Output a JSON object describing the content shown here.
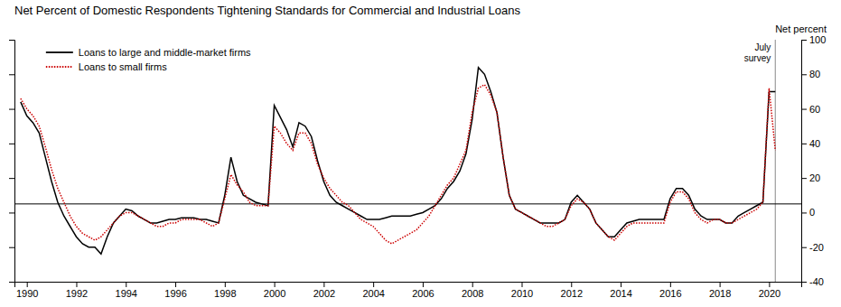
{
  "chart_data": {
    "type": "line",
    "title": "Net Percent of Domestic Respondents Tightening Standards for Commercial and Industrial Loans",
    "ylabel": "Net percent",
    "x": [
      1989.75,
      1990.0,
      1990.25,
      1990.5,
      1990.75,
      1991.0,
      1991.25,
      1991.5,
      1991.75,
      1992.0,
      1992.25,
      1992.5,
      1992.75,
      1993.0,
      1993.25,
      1993.5,
      1993.75,
      1994.0,
      1994.25,
      1994.5,
      1994.75,
      1995.0,
      1995.25,
      1995.5,
      1995.75,
      1996.0,
      1996.25,
      1996.5,
      1996.75,
      1997.0,
      1997.25,
      1997.5,
      1997.75,
      1998.0,
      1998.25,
      1998.5,
      1998.75,
      1999.0,
      1999.25,
      1999.5,
      1999.75,
      2000.0,
      2000.25,
      2000.5,
      2000.75,
      2001.0,
      2001.25,
      2001.5,
      2001.75,
      2002.0,
      2002.25,
      2002.5,
      2002.75,
      2003.0,
      2003.25,
      2003.5,
      2003.75,
      2004.0,
      2004.25,
      2004.5,
      2004.75,
      2005.0,
      2005.25,
      2005.5,
      2005.75,
      2006.0,
      2006.25,
      2006.5,
      2006.75,
      2007.0,
      2007.25,
      2007.5,
      2007.75,
      2008.0,
      2008.25,
      2008.5,
      2008.75,
      2009.0,
      2009.25,
      2009.5,
      2009.75,
      2010.0,
      2010.25,
      2010.5,
      2010.75,
      2011.0,
      2011.25,
      2011.5,
      2011.75,
      2012.0,
      2012.25,
      2012.5,
      2012.75,
      2013.0,
      2013.25,
      2013.5,
      2013.75,
      2014.0,
      2014.25,
      2014.5,
      2014.75,
      2015.0,
      2015.25,
      2015.5,
      2015.75,
      2016.0,
      2016.25,
      2016.5,
      2016.75,
      2017.0,
      2017.25,
      2017.5,
      2017.75,
      2018.0,
      2018.25,
      2018.5,
      2018.75,
      2019.0,
      2019.25,
      2019.5,
      2019.75,
      2020.0,
      2020.25
    ],
    "series": [
      {
        "name": "Loans to large and middle-market firms",
        "color": "#000000",
        "line_style": "solid",
        "values": [
          64,
          56,
          52,
          46,
          32,
          18,
          6,
          -2,
          -8,
          -14,
          -18,
          -20,
          -20,
          -24,
          -14,
          -6,
          -2,
          2,
          1,
          -2,
          -4,
          -6,
          -6,
          -5,
          -4,
          -4,
          -3,
          -3,
          -3,
          -4,
          -4,
          -5,
          -6,
          10,
          32,
          18,
          10,
          8,
          6,
          5,
          4,
          62,
          55,
          48,
          38,
          52,
          50,
          44,
          30,
          18,
          10,
          6,
          4,
          2,
          0,
          -2,
          -4,
          -4,
          -4,
          -3,
          -2,
          -2,
          -2,
          -2,
          -1,
          0,
          2,
          4,
          8,
          14,
          18,
          24,
          34,
          54,
          84,
          80,
          70,
          58,
          32,
          10,
          2,
          0,
          -2,
          -4,
          -6,
          -6,
          -6,
          -6,
          -4,
          6,
          10,
          6,
          2,
          -6,
          -10,
          -14,
          -14,
          -10,
          -6,
          -5,
          -4,
          -4,
          -4,
          -4,
          -4,
          8,
          14,
          14,
          10,
          2,
          -2,
          -4,
          -4,
          -4,
          -6,
          -6,
          -2,
          0,
          2,
          4,
          6,
          70,
          70
        ]
      },
      {
        "name": "Loans to small firms",
        "color": "#cc0000",
        "line_style": "dotted",
        "values": [
          66,
          60,
          56,
          50,
          38,
          25,
          14,
          6,
          -2,
          -8,
          -12,
          -14,
          -16,
          -14,
          -10,
          -6,
          -2,
          0,
          0,
          -2,
          -4,
          -6,
          -8,
          -8,
          -6,
          -6,
          -4,
          -4,
          -4,
          -4,
          -6,
          -8,
          -6,
          8,
          22,
          16,
          12,
          6,
          4,
          4,
          4,
          50,
          46,
          40,
          36,
          46,
          46,
          40,
          28,
          20,
          14,
          10,
          6,
          4,
          0,
          -4,
          -6,
          -8,
          -12,
          -16,
          -18,
          -16,
          -14,
          -12,
          -10,
          -6,
          -2,
          4,
          10,
          16,
          20,
          28,
          36,
          58,
          72,
          74,
          68,
          58,
          32,
          10,
          2,
          0,
          -2,
          -4,
          -6,
          -8,
          -8,
          -6,
          -4,
          4,
          8,
          6,
          2,
          -6,
          -10,
          -14,
          -16,
          -12,
          -8,
          -6,
          -6,
          -6,
          -6,
          -6,
          -6,
          6,
          12,
          12,
          8,
          0,
          -4,
          -6,
          -4,
          -4,
          -6,
          -6,
          -4,
          -2,
          0,
          2,
          6,
          72,
          36
        ]
      }
    ],
    "xlim": [
      1989.5,
      2021.3
    ],
    "xticks": [
      1990,
      1992,
      1994,
      1996,
      1998,
      2000,
      2002,
      2004,
      2006,
      2008,
      2010,
      2012,
      2014,
      2016,
      2018,
      2020
    ],
    "ylim": [
      -40,
      100
    ],
    "yticks": [
      -40,
      -20,
      0,
      20,
      40,
      60,
      80,
      100
    ],
    "legend": "upper left",
    "grid": false,
    "annotations": [
      {
        "text": "July\nsurvey",
        "x": 2020.25,
        "color": "#888888"
      },
      {
        "y": 5,
        "color": "#000000"
      }
    ]
  }
}
